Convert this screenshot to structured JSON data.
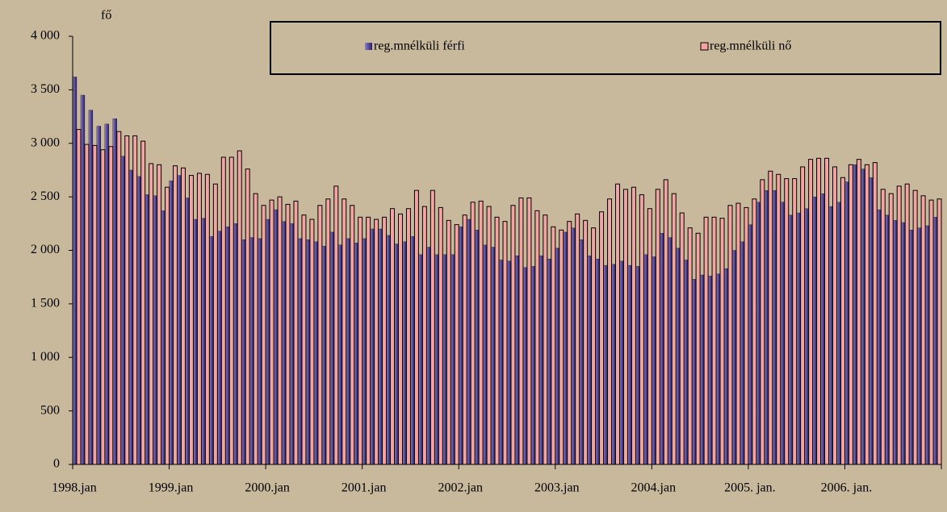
{
  "chart_data": {
    "type": "bar",
    "y_unit": "fő",
    "categories": [
      "1998.jan",
      null,
      null,
      null,
      null,
      null,
      null,
      null,
      null,
      null,
      null,
      null,
      "1999.jan",
      null,
      null,
      null,
      null,
      null,
      null,
      null,
      null,
      null,
      null,
      null,
      "2000.jan",
      null,
      null,
      null,
      null,
      null,
      null,
      null,
      null,
      null,
      null,
      null,
      "2001.jan",
      null,
      null,
      null,
      null,
      null,
      null,
      null,
      null,
      null,
      null,
      null,
      "2002.jan",
      null,
      null,
      null,
      null,
      null,
      null,
      null,
      null,
      null,
      null,
      null,
      "2003.jan",
      null,
      null,
      null,
      null,
      null,
      null,
      null,
      null,
      null,
      null,
      null,
      "2004.jan",
      null,
      null,
      null,
      null,
      null,
      null,
      null,
      null,
      null,
      null,
      null,
      "2005. jan.",
      null,
      null,
      null,
      null,
      null,
      null,
      null,
      null,
      null,
      null,
      null,
      "2006. jan.",
      null,
      null,
      null,
      null,
      null,
      null,
      null,
      null,
      null,
      null,
      null
    ],
    "series": [
      {
        "name": "reg.mnélküli férfi",
        "color": "#3d2f86",
        "values": [
          3620,
          3450,
          3310,
          3160,
          3180,
          3230,
          2880,
          2750,
          2690,
          2520,
          2510,
          2370,
          2650,
          2700,
          2490,
          2290,
          2300,
          2130,
          2180,
          2220,
          2250,
          2100,
          2120,
          2110,
          2290,
          2380,
          2270,
          2250,
          2110,
          2100,
          2080,
          2040,
          2170,
          2050,
          2110,
          2070,
          2110,
          2200,
          2200,
          2140,
          2060,
          2080,
          2130,
          1960,
          2030,
          1960,
          1960,
          1960,
          2220,
          2290,
          2190,
          2050,
          2030,
          1910,
          1900,
          1950,
          1840,
          1850,
          1950,
          1920,
          2020,
          2170,
          2210,
          2100,
          1950,
          1920,
          1860,
          1870,
          1900,
          1860,
          1850,
          1960,
          1940,
          2160,
          2120,
          2020,
          1910,
          1730,
          1770,
          1760,
          1780,
          1830,
          2000,
          2080,
          2240,
          2450,
          2560,
          2560,
          2450,
          2330,
          2350,
          2390,
          2500,
          2530,
          2410,
          2450,
          2640,
          2800,
          2760,
          2680,
          2380,
          2330,
          2280,
          2260,
          2190,
          2210,
          2230,
          2310
        ]
      },
      {
        "name": "reg.mnélküli nő",
        "color": "#f4a4a0",
        "values": [
          3130,
          2990,
          2980,
          2940,
          2970,
          3110,
          3070,
          3070,
          3020,
          2810,
          2800,
          2590,
          2790,
          2770,
          2700,
          2720,
          2710,
          2620,
          2870,
          2870,
          2930,
          2760,
          2530,
          2420,
          2470,
          2500,
          2430,
          2460,
          2330,
          2290,
          2420,
          2480,
          2600,
          2480,
          2420,
          2310,
          2310,
          2290,
          2310,
          2390,
          2340,
          2390,
          2560,
          2410,
          2560,
          2400,
          2280,
          2240,
          2330,
          2450,
          2460,
          2410,
          2310,
          2270,
          2420,
          2490,
          2490,
          2370,
          2330,
          2220,
          2190,
          2270,
          2340,
          2280,
          2210,
          2360,
          2480,
          2620,
          2570,
          2590,
          2520,
          2390,
          2570,
          2660,
          2530,
          2350,
          2210,
          2160,
          2310,
          2310,
          2300,
          2420,
          2440,
          2400,
          2480,
          2660,
          2740,
          2710,
          2670,
          2670,
          2780,
          2850,
          2860,
          2860,
          2780,
          2680,
          2800,
          2850,
          2800,
          2820,
          2570,
          2530,
          2600,
          2620,
          2560,
          2510,
          2470,
          2480
        ]
      }
    ],
    "ylim": [
      0,
      4000
    ],
    "yticks": [
      0,
      500,
      {
        "value": 1000,
        "label": "1 000"
      },
      {
        "value": 1500,
        "label": "1 500"
      },
      {
        "value": 2000,
        "label": "2 000"
      },
      {
        "value": 2500,
        "label": "2 500"
      },
      {
        "value": 3000,
        "label": "3 000"
      },
      {
        "value": 3500,
        "label": "3 500"
      },
      {
        "value": 4000,
        "label": "4 000"
      }
    ],
    "grid": false,
    "legend": "top"
  }
}
